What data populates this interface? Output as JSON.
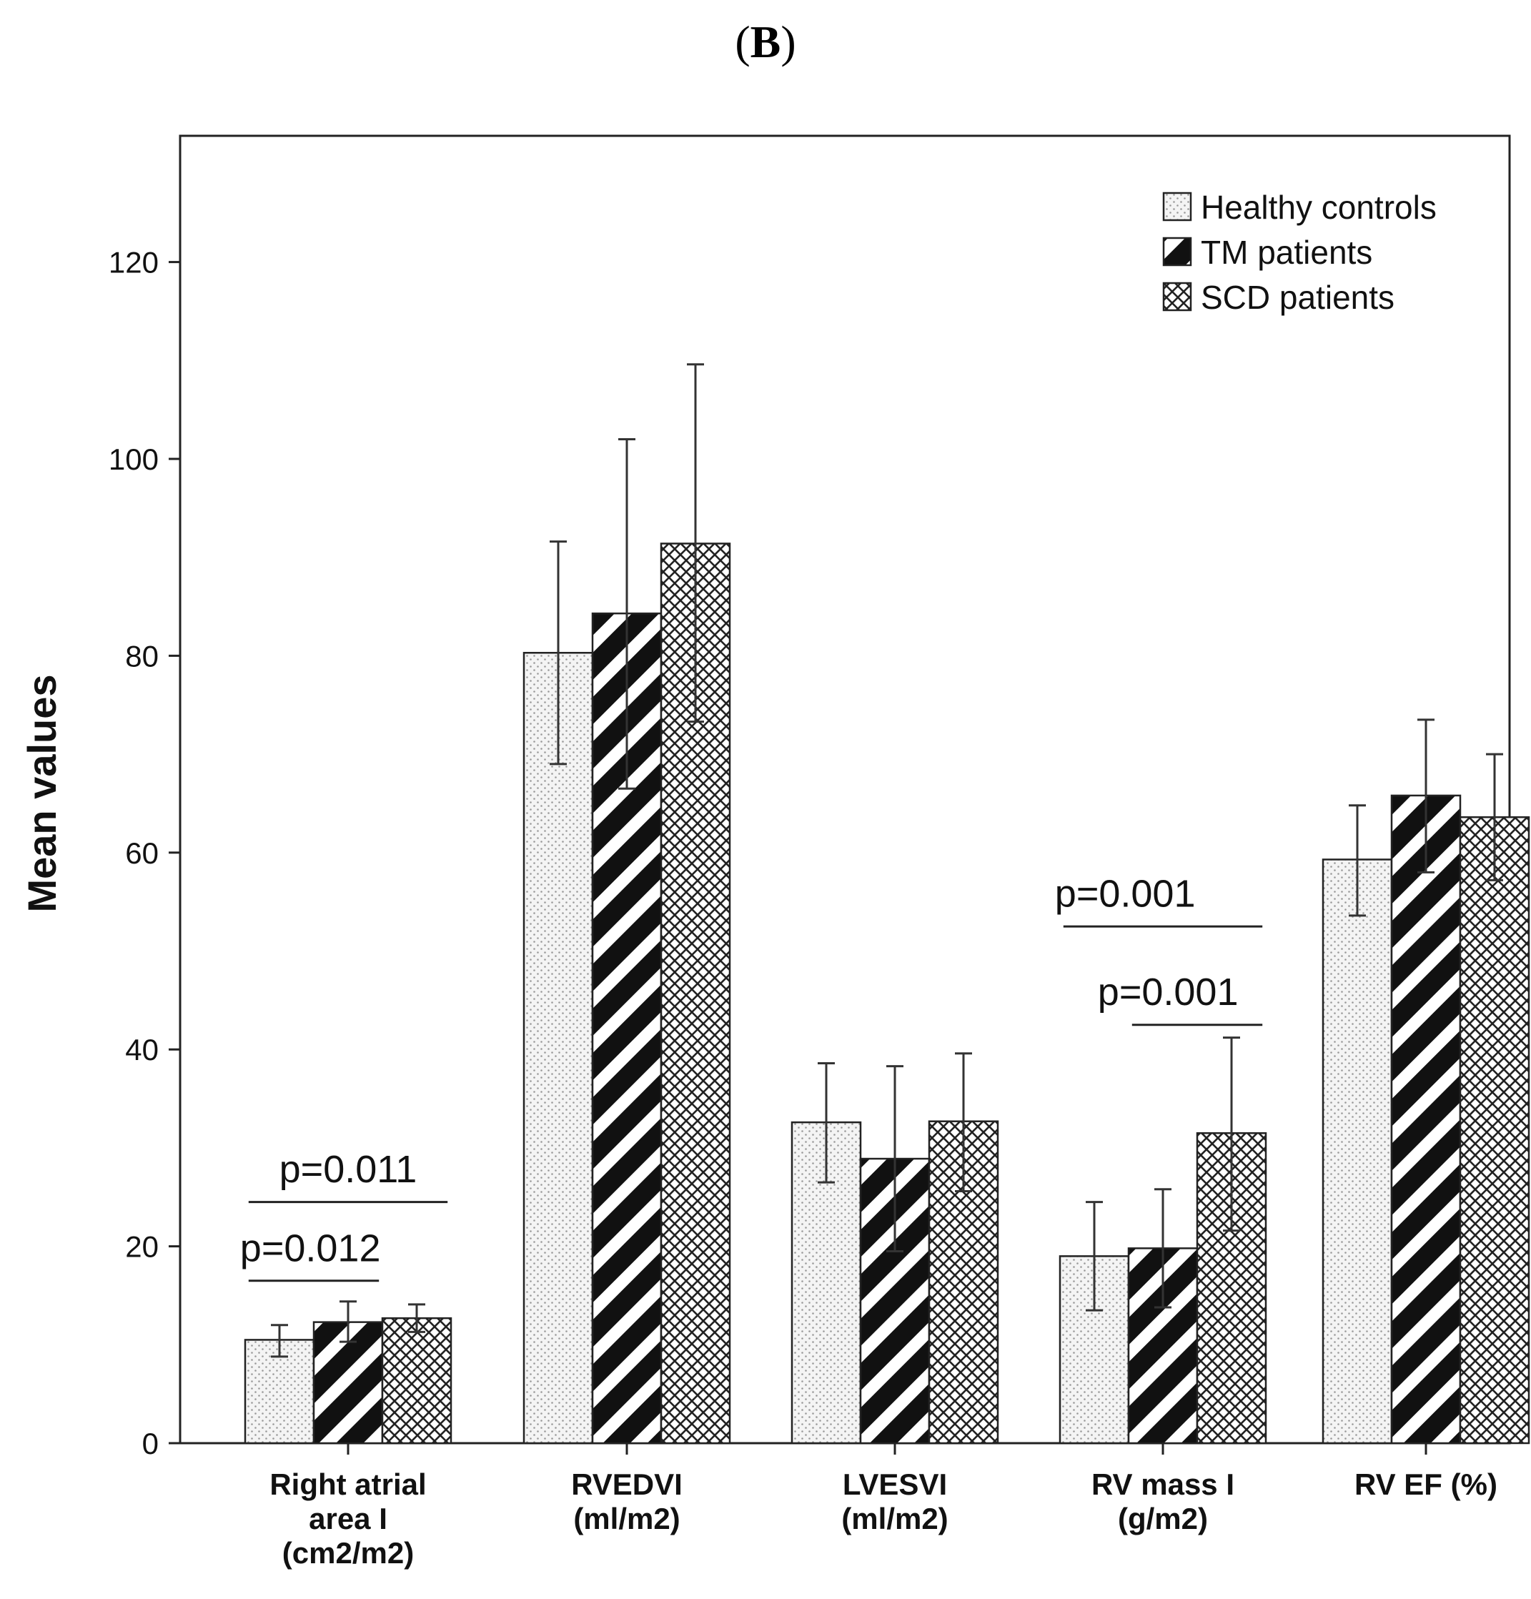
{
  "panel_label": {
    "open": "(",
    "letter": "B",
    "close": ")"
  },
  "chart_data": {
    "type": "bar",
    "ylabel": "Mean values",
    "xlabel": "",
    "ylim": [
      0,
      132
    ],
    "yticks": [
      0,
      20,
      40,
      60,
      80,
      100,
      120
    ],
    "grid": false,
    "legend_position": "top-right",
    "categories": [
      [
        "Right atrial",
        "area I",
        "(cm2/m2)"
      ],
      [
        "RVEDVI",
        "(ml/m2)"
      ],
      [
        "LVESVI",
        "(ml/m2)"
      ],
      [
        "RV mass I",
        "(g/m2)"
      ],
      [
        "RV EF (%)"
      ]
    ],
    "series": [
      {
        "name": "Healthy controls",
        "pattern": "dots",
        "values": [
          10.5,
          80.3,
          32.6,
          19.0,
          59.3
        ],
        "err_low": [
          8.8,
          69.0,
          26.5,
          13.5,
          53.6
        ],
        "err_high": [
          12.0,
          91.6,
          38.6,
          24.5,
          64.8
        ]
      },
      {
        "name": "TM patients",
        "pattern": "stripes",
        "values": [
          12.3,
          84.3,
          28.9,
          19.8,
          65.8
        ],
        "err_low": [
          10.3,
          66.5,
          19.5,
          13.8,
          58.0
        ],
        "err_high": [
          14.4,
          102.0,
          38.3,
          25.8,
          73.5
        ]
      },
      {
        "name": "SCD patients",
        "pattern": "crosshatch",
        "values": [
          12.7,
          91.4,
          32.7,
          31.5,
          63.6
        ],
        "err_low": [
          11.3,
          73.3,
          25.6,
          21.6,
          57.2
        ],
        "err_high": [
          14.1,
          109.6,
          39.6,
          41.2,
          70.0
        ]
      }
    ],
    "annotations": [
      {
        "text": "p=0.011",
        "category": 0,
        "from_series": 0,
        "to_series": 2,
        "line_y": 24.5,
        "text_y": 26.5,
        "text_anchor": "center"
      },
      {
        "text": "p=0.012",
        "category": 0,
        "from_series": 0,
        "to_series": 1,
        "line_y": 16.5,
        "text_y": 18.5,
        "text_anchor": "left-of-first"
      },
      {
        "text": "p=0.001",
        "category": 3,
        "from_series": 0,
        "to_series": 2,
        "line_y": 52.5,
        "text_y": 54.5,
        "text_anchor": "left-of-first"
      },
      {
        "text": "p=0.001",
        "category": 3,
        "from_series": 1,
        "to_series": 2,
        "line_y": 42.5,
        "text_y": 44.5,
        "text_anchor": "before-first"
      }
    ]
  }
}
